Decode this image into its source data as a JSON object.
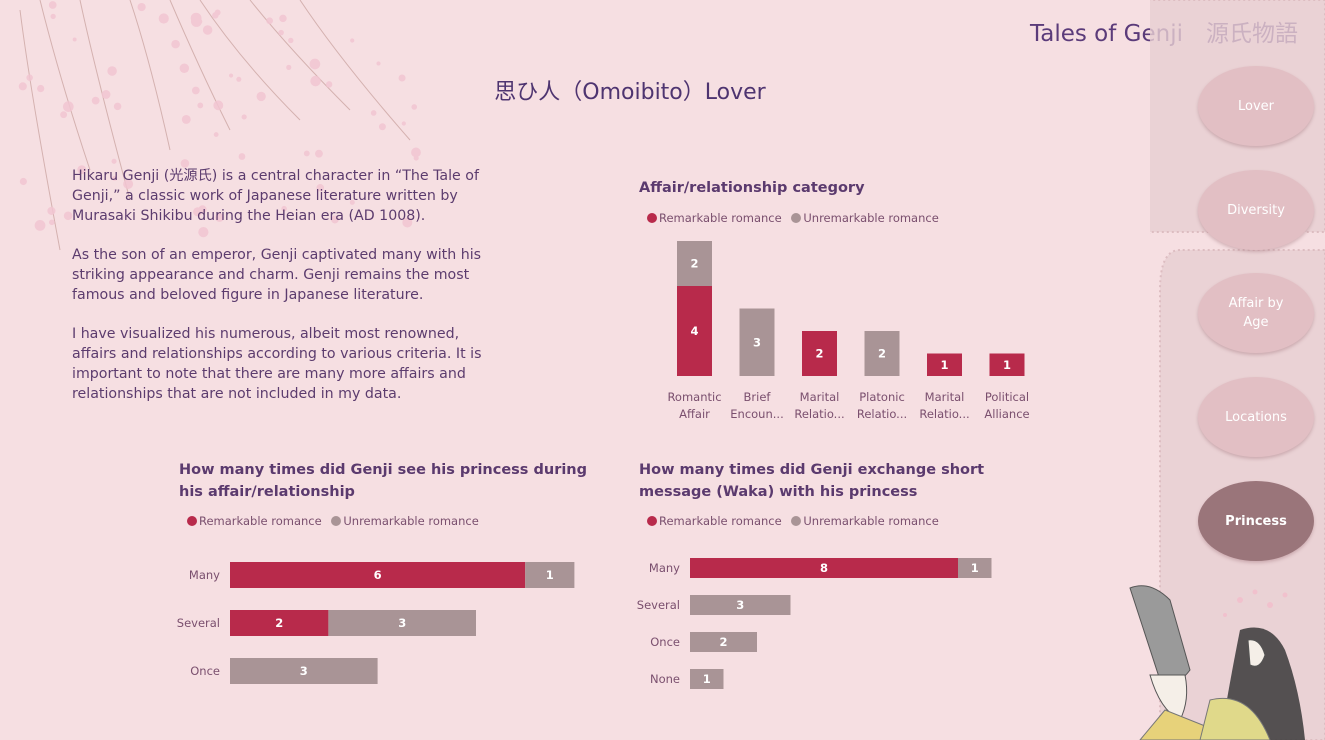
{
  "brand": "Tales of Genji　源氏物語",
  "page_title": "思ひ人（Omoibito）Lover",
  "intro": [
    "Hikaru Genji (光源氏) is a central character in “The Tale of Genji,” a classic work of Japanese literature written by Murasaki Shikibu during the Heian era (AD 1008).",
    "As the son of an emperor, Genji captivated many with his striking appearance and charm. Genji remains the most famous and beloved figure in Japanese literature.",
    "I have visualized his numerous, albeit most renowned, affairs and relationships according to various criteria. It is important to note that there are many more affairs and relationships that are not included in my data."
  ],
  "nav": {
    "items": [
      {
        "label": "Lover",
        "active": false
      },
      {
        "label": "Diversity",
        "active": false
      },
      {
        "label": "Affair by\nAge",
        "active": false
      },
      {
        "label": "Locations",
        "active": false
      },
      {
        "label": "Princess",
        "active": true
      }
    ]
  },
  "colors": {
    "remarkable": "#b82a4b",
    "unremarkable": "#a99496"
  },
  "chart_data": [
    {
      "type": "bar",
      "orientation": "vertical",
      "stacked": true,
      "title": "Affair/relationship category",
      "categories": [
        "Romantic\nAffair",
        "Brief\nEncoun...",
        "Marital\nRelatio...",
        "Platonic\nRelatio...",
        "Marital\nRelatio...",
        "Political\nAlliance"
      ],
      "series": [
        {
          "name": "Remarkable romance",
          "values": [
            4,
            0,
            2,
            0,
            1,
            1
          ]
        },
        {
          "name": "Unremarkable romance",
          "values": [
            2,
            3,
            0,
            2,
            0,
            0
          ]
        }
      ],
      "legend": "top-left",
      "grid": false
    },
    {
      "type": "bar",
      "orientation": "horizontal",
      "stacked": true,
      "title": "How many times did Genji see his princess during his affair/relationship",
      "categories": [
        "Many",
        "Several",
        "Once"
      ],
      "series": [
        {
          "name": "Remarkable romance",
          "values": [
            6,
            2,
            0
          ]
        },
        {
          "name": "Unremarkable romance",
          "values": [
            1,
            3,
            3
          ]
        }
      ],
      "legend": "top-left",
      "grid": false
    },
    {
      "type": "bar",
      "orientation": "horizontal",
      "stacked": true,
      "title": "How many times did Genji exchange short message (Waka) with his princess",
      "categories": [
        "Many",
        "Several",
        "Once",
        "None"
      ],
      "series": [
        {
          "name": "Remarkable romance",
          "values": [
            8,
            0,
            0,
            0
          ]
        },
        {
          "name": "Unremarkable romance",
          "values": [
            1,
            3,
            2,
            1
          ]
        }
      ],
      "legend": "top-left",
      "grid": false
    }
  ]
}
